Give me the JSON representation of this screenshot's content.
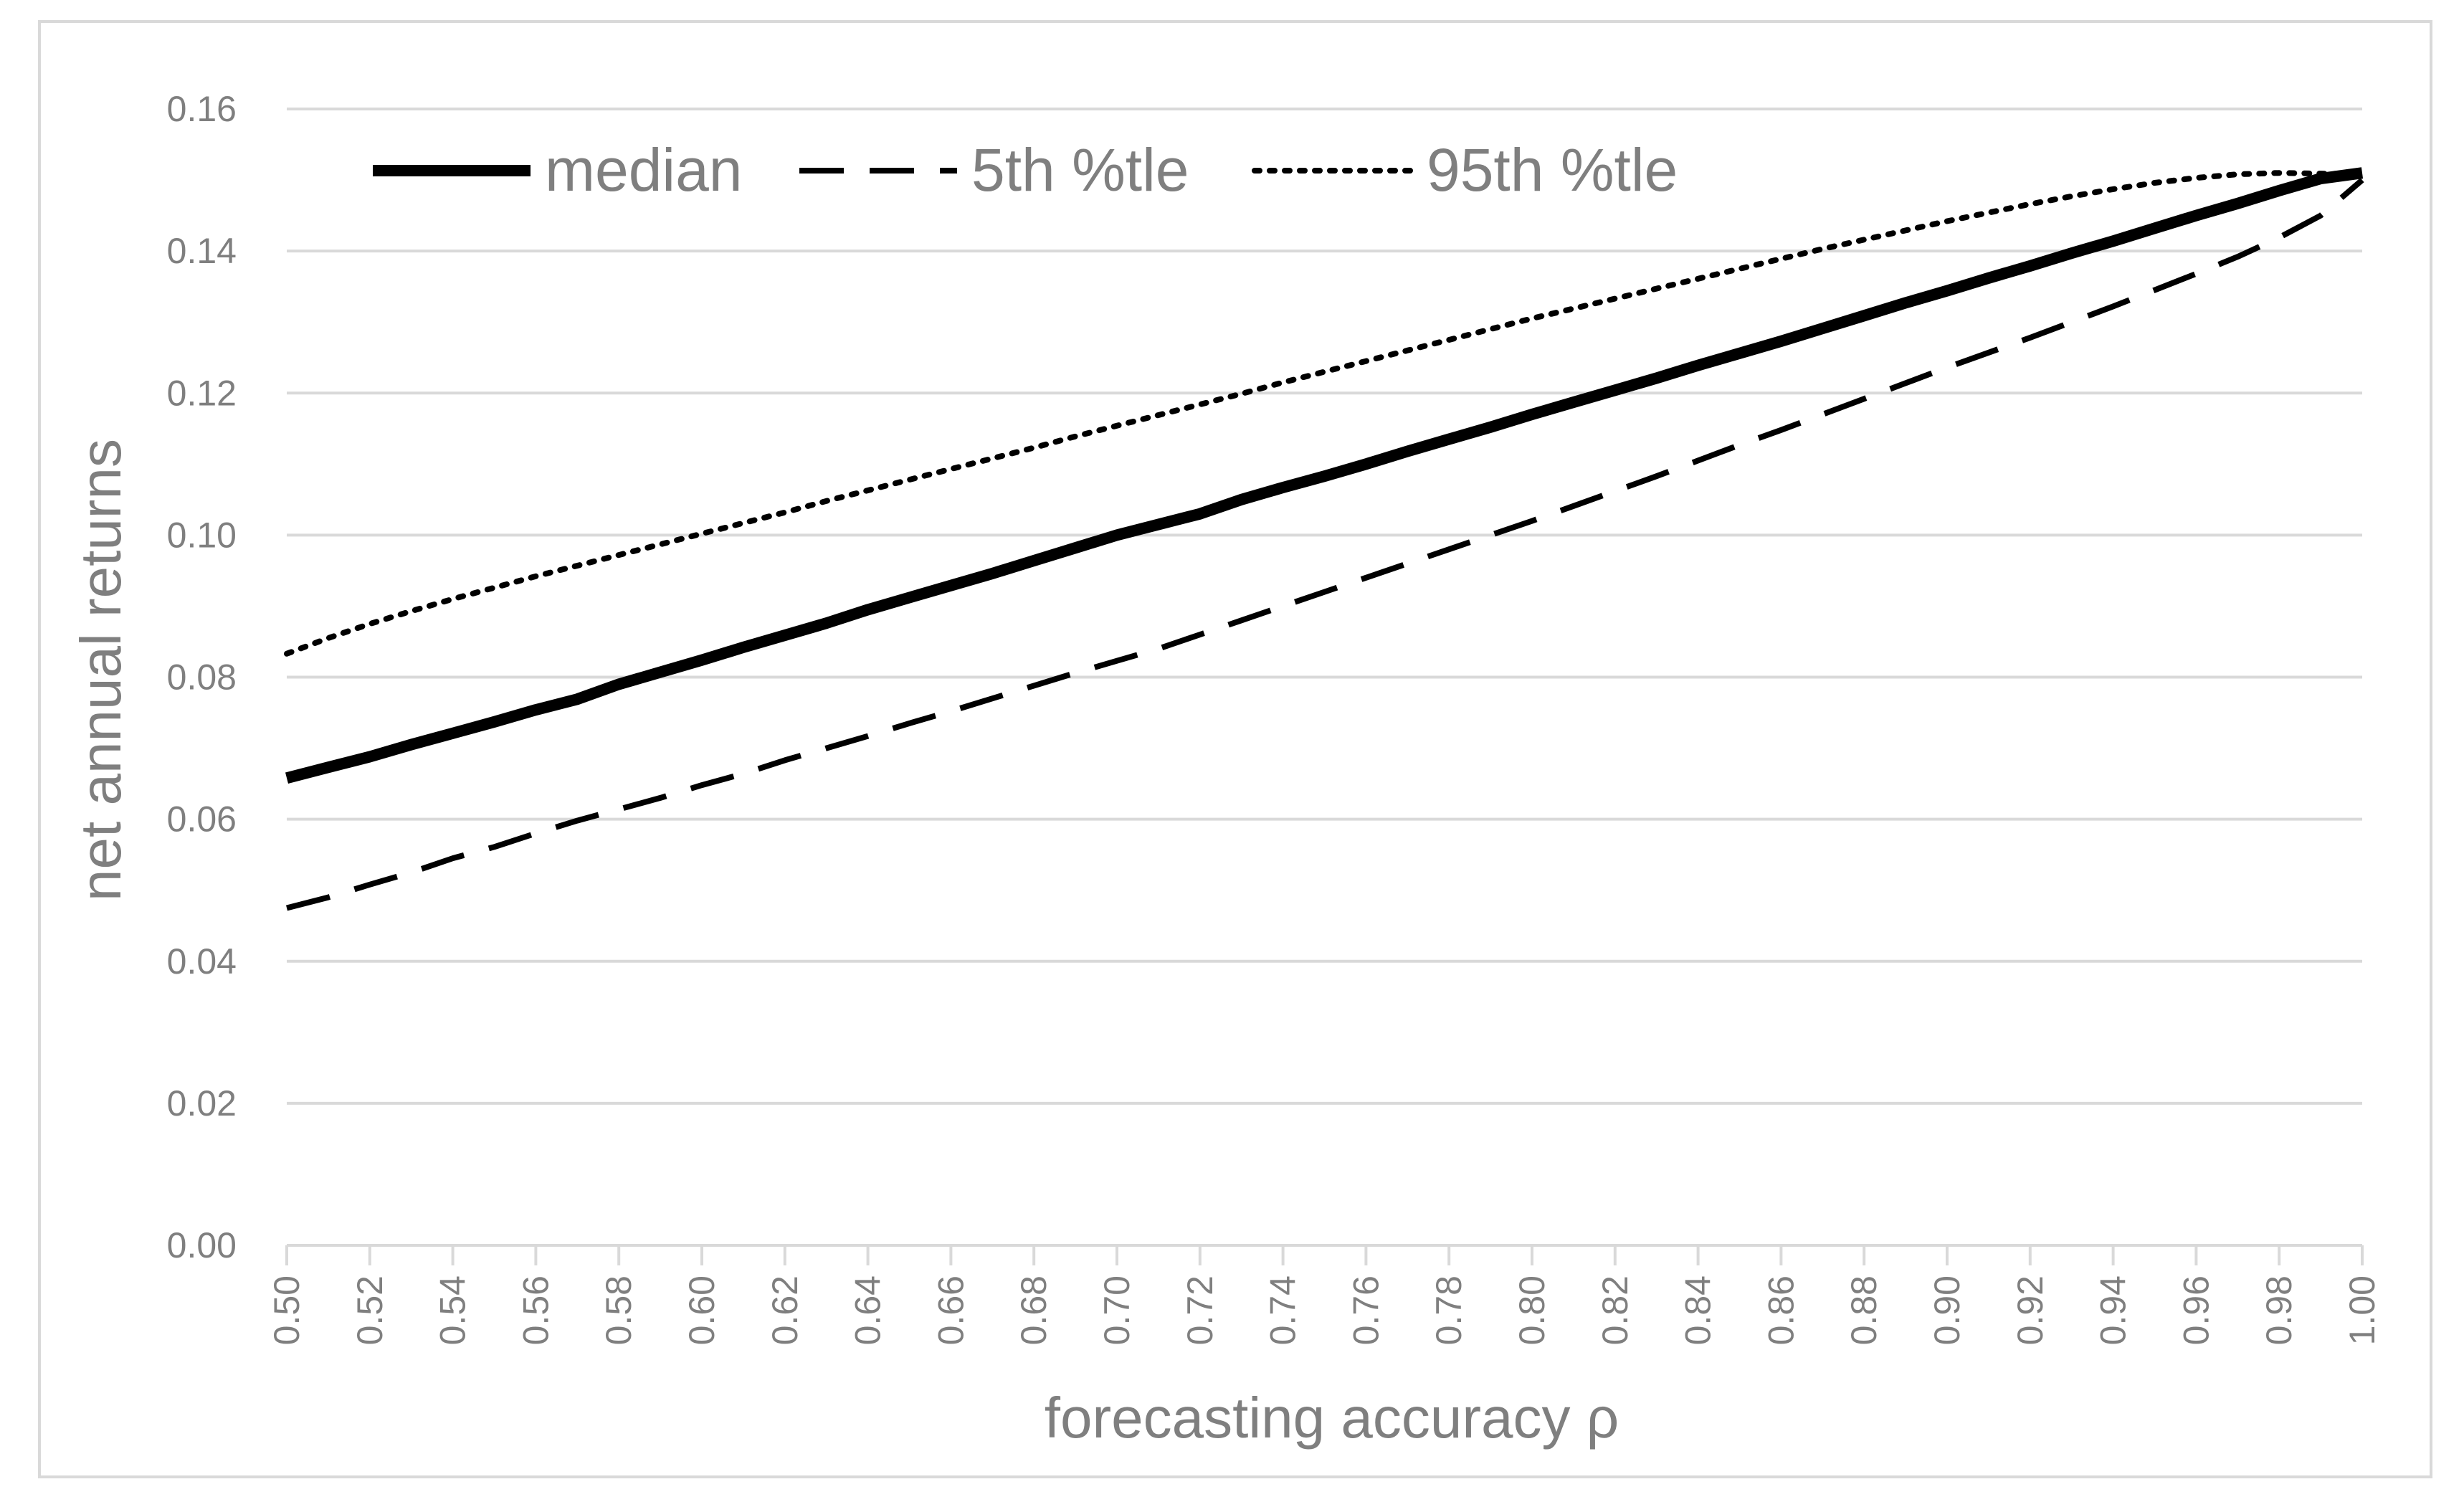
{
  "chart_data": {
    "type": "line",
    "title": "",
    "xlabel": "forecasting accuracy ρ",
    "ylabel": "net annual returns",
    "xlim": [
      0.5,
      1.0
    ],
    "ylim": [
      0.0,
      0.16
    ],
    "grid": true,
    "legend_position": "top-left",
    "x_ticks": [
      "0.50",
      "0.52",
      "0.54",
      "0.56",
      "0.58",
      "0.60",
      "0.62",
      "0.64",
      "0.66",
      "0.68",
      "0.70",
      "0.72",
      "0.74",
      "0.76",
      "0.78",
      "0.80",
      "0.82",
      "0.84",
      "0.86",
      "0.88",
      "0.90",
      "0.92",
      "0.94",
      "0.96",
      "0.98",
      "1.00"
    ],
    "y_ticks": [
      "0.00",
      "0.02",
      "0.04",
      "0.06",
      "0.08",
      "0.10",
      "0.12",
      "0.14",
      "0.16"
    ],
    "x": [
      0.5,
      0.51,
      0.52,
      0.53,
      0.54,
      0.55,
      0.56,
      0.57,
      0.58,
      0.59,
      0.6,
      0.61,
      0.62,
      0.63,
      0.64,
      0.65,
      0.66,
      0.67,
      0.68,
      0.69,
      0.7,
      0.71,
      0.72,
      0.73,
      0.74,
      0.75,
      0.76,
      0.77,
      0.78,
      0.79,
      0.8,
      0.81,
      0.82,
      0.83,
      0.84,
      0.85,
      0.86,
      0.87,
      0.88,
      0.89,
      0.9,
      0.91,
      0.92,
      0.93,
      0.94,
      0.95,
      0.96,
      0.97,
      0.98,
      0.99,
      1.0
    ],
    "series": [
      {
        "name": "median",
        "style": "solid",
        "color": "#000000",
        "values": [
          0.0658,
          0.0673,
          0.0688,
          0.0705,
          0.0721,
          0.0737,
          0.0754,
          0.0769,
          0.079,
          0.0807,
          0.0824,
          0.0842,
          0.0859,
          0.0876,
          0.0895,
          0.0912,
          0.0929,
          0.0946,
          0.0964,
          0.0982,
          0.1,
          0.1015,
          0.103,
          0.105,
          0.1067,
          0.1083,
          0.11,
          0.1118,
          0.1135,
          0.1152,
          0.117,
          0.1187,
          0.1204,
          0.1221,
          0.1239,
          0.1256,
          0.1273,
          0.1291,
          0.1309,
          0.1327,
          0.1344,
          0.1362,
          0.1379,
          0.1397,
          0.1414,
          0.1432,
          0.145,
          0.1467,
          0.1485,
          0.1502,
          0.151
        ]
      },
      {
        "name": "5th %tle",
        "style": "dashed",
        "color": "#000000",
        "values": [
          0.0475,
          0.049,
          0.0508,
          0.0525,
          0.0545,
          0.0561,
          0.058,
          0.0598,
          0.0614,
          0.063,
          0.0648,
          0.0664,
          0.0683,
          0.07,
          0.0717,
          0.0735,
          0.0752,
          0.077,
          0.0788,
          0.0806,
          0.0823,
          0.084,
          0.086,
          0.088,
          0.09,
          0.092,
          0.094,
          0.096,
          0.098,
          0.1,
          0.102,
          0.1041,
          0.1062,
          0.1083,
          0.1105,
          0.1127,
          0.1148,
          0.117,
          0.1192,
          0.1214,
          0.1236,
          0.1257,
          0.1278,
          0.13,
          0.1322,
          0.1345,
          0.1368,
          0.1392,
          0.1419,
          0.145,
          0.15
        ]
      },
      {
        "name": "95th %tle",
        "style": "dotted",
        "color": "#000000",
        "values": [
          0.0833,
          0.0855,
          0.0875,
          0.0893,
          0.091,
          0.0926,
          0.0942,
          0.0957,
          0.0972,
          0.0987,
          0.1002,
          0.1017,
          0.1032,
          0.1048,
          0.1063,
          0.1078,
          0.1093,
          0.1108,
          0.1123,
          0.1139,
          0.1154,
          0.1169,
          0.1184,
          0.1199,
          0.1215,
          0.123,
          0.1245,
          0.126,
          0.1275,
          0.129,
          0.1305,
          0.1319,
          0.1333,
          0.1347,
          0.1361,
          0.1375,
          0.1389,
          0.1403,
          0.1416,
          0.1429,
          0.1442,
          0.1454,
          0.1466,
          0.1477,
          0.1487,
          0.1496,
          0.1503,
          0.1508,
          0.151,
          0.1509,
          0.1508
        ]
      }
    ]
  }
}
